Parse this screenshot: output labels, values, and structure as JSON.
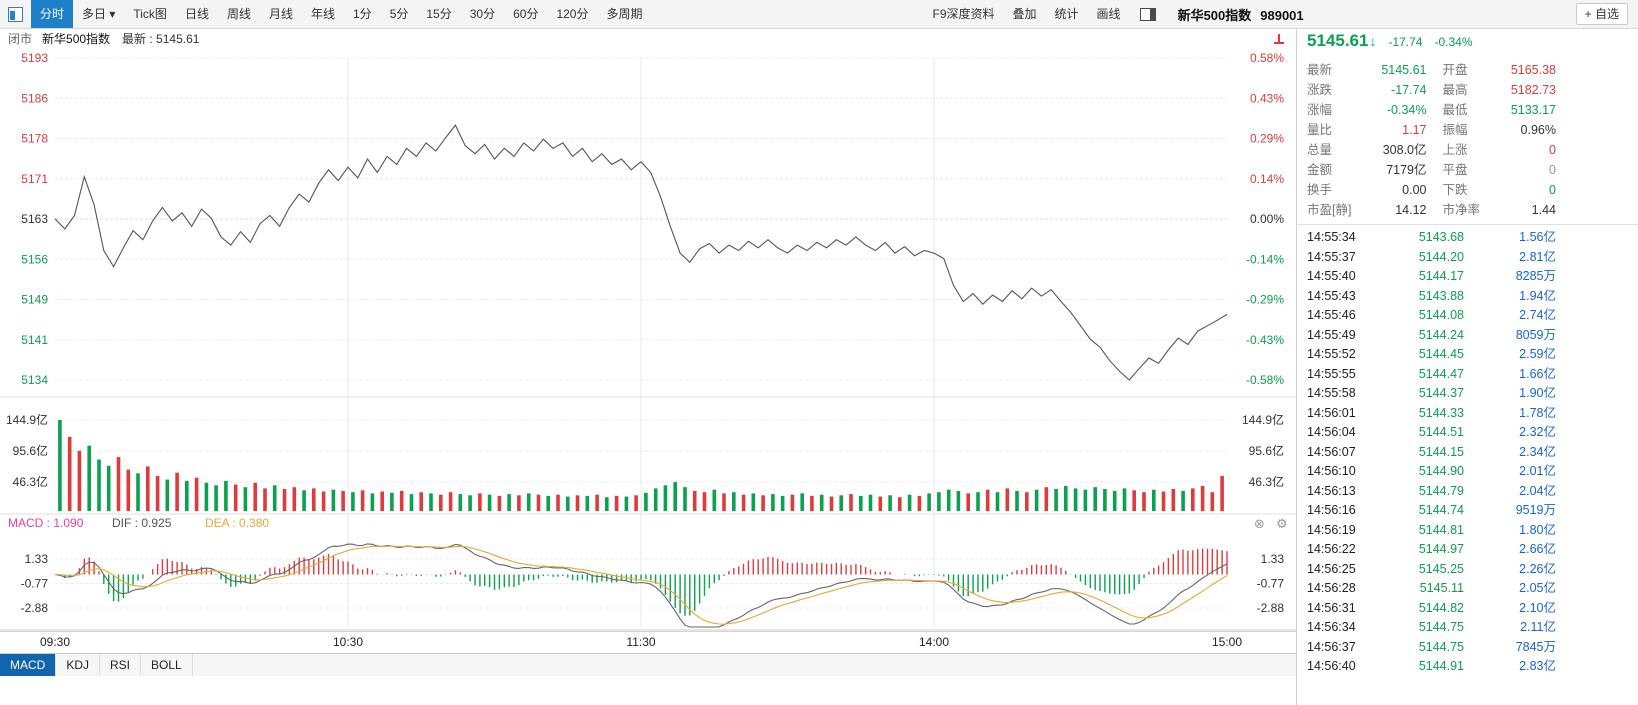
{
  "toolbar": {
    "tabs": [
      {
        "label": "分时",
        "active": true
      },
      {
        "label": "多日",
        "dropdown": true
      },
      {
        "label": "Tick图"
      },
      {
        "label": "日线"
      },
      {
        "label": "周线"
      },
      {
        "label": "月线"
      },
      {
        "label": "年线"
      },
      {
        "label": "1分"
      },
      {
        "label": "5分"
      },
      {
        "label": "15分"
      },
      {
        "label": "30分"
      },
      {
        "label": "60分"
      },
      {
        "label": "120分"
      },
      {
        "label": "多周期"
      }
    ],
    "right_items": [
      "F9深度资料",
      "叠加",
      "统计",
      "画线"
    ]
  },
  "subheader": {
    "market_status": "闭市",
    "name": "新华500指数",
    "latest": "最新 : 5145.61"
  },
  "panel": {
    "title": "新华500指数",
    "code": "989001",
    "add_watch": "+ 自选",
    "last": "5145.61",
    "arrow": "↓",
    "change": "-17.74",
    "change_pct": "-0.34%"
  },
  "stats": [
    [
      [
        "最新",
        "5145.61",
        "down"
      ],
      [
        "开盘",
        "5165.38",
        "up"
      ]
    ],
    [
      [
        "涨跌",
        "-17.74",
        "down"
      ],
      [
        "最高",
        "5182.73",
        "up"
      ]
    ],
    [
      [
        "涨幅",
        "-0.34%",
        "down"
      ],
      [
        "最低",
        "5133.17",
        "down"
      ]
    ],
    [
      [
        "量比",
        "1.17",
        "up"
      ],
      [
        "振幅",
        "0.96%",
        "flat"
      ]
    ],
    [
      [
        "总量",
        "308.0亿",
        "flat"
      ],
      [
        "上涨",
        "0",
        "up"
      ]
    ],
    [
      [
        "金额",
        "7179亿",
        "flat"
      ],
      [
        "平盘",
        "0",
        "gray"
      ]
    ],
    [
      [
        "换手",
        "0.00",
        "flat"
      ],
      [
        "下跌",
        "0",
        "down"
      ]
    ],
    [
      [
        "市盈[静]",
        "14.12",
        "flat"
      ],
      [
        "市净率",
        "1.44",
        "flat"
      ]
    ]
  ],
  "ticks": [
    [
      "14:55:34",
      "5143.68",
      "1.56亿"
    ],
    [
      "14:55:37",
      "5144.20",
      "2.81亿"
    ],
    [
      "14:55:40",
      "5144.17",
      "8285万"
    ],
    [
      "14:55:43",
      "5143.88",
      "1.94亿"
    ],
    [
      "14:55:46",
      "5144.08",
      "2.74亿"
    ],
    [
      "14:55:49",
      "5144.24",
      "8059万"
    ],
    [
      "14:55:52",
      "5144.45",
      "2.59亿"
    ],
    [
      "14:55:55",
      "5144.47",
      "1.66亿"
    ],
    [
      "14:55:58",
      "5144.37",
      "1.90亿"
    ],
    [
      "14:56:01",
      "5144.33",
      "1.78亿"
    ],
    [
      "14:56:04",
      "5144.51",
      "2.32亿"
    ],
    [
      "14:56:07",
      "5144.15",
      "2.34亿"
    ],
    [
      "14:56:10",
      "5144.90",
      "2.01亿"
    ],
    [
      "14:56:13",
      "5144.79",
      "2.04亿"
    ],
    [
      "14:56:16",
      "5144.74",
      "9519万"
    ],
    [
      "14:56:19",
      "5144.81",
      "1.80亿"
    ],
    [
      "14:56:22",
      "5144.97",
      "2.66亿"
    ],
    [
      "14:56:25",
      "5145.25",
      "2.26亿"
    ],
    [
      "14:56:28",
      "5145.11",
      "2.05亿"
    ],
    [
      "14:56:31",
      "5144.82",
      "2.10亿"
    ],
    [
      "14:56:34",
      "5144.75",
      "2.11亿"
    ],
    [
      "14:56:37",
      "5144.75",
      "7845万"
    ],
    [
      "14:56:40",
      "5144.91",
      "2.83亿"
    ]
  ],
  "bottom_tabs": [
    {
      "label": "MACD",
      "active": true
    },
    {
      "label": "KDJ"
    },
    {
      "label": "RSI"
    },
    {
      "label": "BOLL"
    }
  ],
  "macd_header": {
    "macd": "MACD : 1.090",
    "dif": "DIF : 0.925",
    "dea": "DEA : 0.380"
  },
  "colors": {
    "up": "#e03b3b",
    "down": "#0aa150",
    "flat": "#333333",
    "gray": "#999999",
    "blue": "#1565d8",
    "accent": "#1e80c8",
    "line": "#555555",
    "dea": "#e8a838",
    "magenta": "#e040b0"
  },
  "chart_data": {
    "type": "line",
    "title": "新华500指数 分时走势",
    "prev_close": 5163.35,
    "x_tick_labels": [
      "09:30",
      "10:30",
      "11:30",
      "14:00",
      "15:00"
    ],
    "price_axis": [
      "5193",
      "5186",
      "5178",
      "5171",
      "5163",
      "5156",
      "5149",
      "5141",
      "5134"
    ],
    "pct_axis": [
      "0.58%",
      "0.43%",
      "0.29%",
      "0.14%",
      "0.00%",
      "-0.14%",
      "-0.29%",
      "-0.43%",
      "-0.58%"
    ],
    "volume_axis": [
      "144.9亿",
      "95.6亿",
      "46.3亿"
    ],
    "volume_axis_values": [
      144.9,
      95.6,
      46.3
    ],
    "macd_axis": [
      "1.33",
      "-0.77",
      "-2.88"
    ],
    "indicator": {
      "name": "MACD",
      "macd": 1.09,
      "dif": 0.925,
      "dea": 0.38
    },
    "prices": [
      5163.4,
      5161.5,
      5164.0,
      5171.2,
      5166.0,
      5157.5,
      5154.5,
      5158.0,
      5161.2,
      5159.5,
      5163.0,
      5165.5,
      5163.0,
      5164.5,
      5162.0,
      5165.2,
      5163.5,
      5160.0,
      5158.5,
      5161.0,
      5159.0,
      5162.5,
      5164.0,
      5162.0,
      5165.5,
      5168.0,
      5166.5,
      5170.0,
      5172.5,
      5170.5,
      5173.0,
      5171.0,
      5174.5,
      5172.0,
      5175.0,
      5173.5,
      5176.5,
      5175.0,
      5177.5,
      5176.0,
      5178.5,
      5180.8,
      5177.0,
      5175.5,
      5177.2,
      5174.5,
      5176.5,
      5175.0,
      5177.5,
      5176.0,
      5178.2,
      5176.5,
      5177.5,
      5175.0,
      5176.5,
      5174.0,
      5175.5,
      5173.5,
      5174.5,
      5172.5,
      5174.0,
      5172.0,
      5167.5,
      5162.0,
      5157.0,
      5155.3,
      5157.8,
      5158.8,
      5157.0,
      5158.5,
      5157.5,
      5159.2,
      5158.0,
      5159.5,
      5158.0,
      5157.0,
      5158.5,
      5157.5,
      5159.0,
      5158.0,
      5159.5,
      5158.5,
      5160.0,
      5158.5,
      5157.5,
      5159.0,
      5157.0,
      5158.2,
      5156.5,
      5157.5,
      5157.0,
      5156.0,
      5151.0,
      5148.0,
      5149.5,
      5147.5,
      5149.2,
      5148.0,
      5150.0,
      5148.5,
      5150.5,
      5149.0,
      5150.2,
      5148.0,
      5146.0,
      5143.5,
      5141.0,
      5139.5,
      5137.0,
      5135.0,
      5133.4,
      5135.5,
      5137.5,
      5136.5,
      5139.0,
      5141.2,
      5140.0,
      5142.5,
      5143.5,
      5144.5,
      5145.6
    ],
    "volumes": [
      145,
      118,
      96,
      104,
      82,
      72,
      86,
      66,
      60,
      71,
      56,
      50,
      61,
      48,
      53,
      45,
      41,
      48,
      42,
      38,
      45,
      36,
      41,
      35,
      38,
      33,
      36,
      31,
      34,
      32,
      30,
      33,
      28,
      31,
      29,
      32,
      27,
      30,
      28,
      26,
      30,
      27,
      25,
      28,
      26,
      24,
      27,
      25,
      28,
      26,
      24,
      26,
      23,
      25,
      24,
      26,
      22,
      24,
      23,
      25,
      29,
      36,
      41,
      46,
      38,
      32,
      30,
      34,
      28,
      30,
      26,
      28,
      25,
      27,
      24,
      26,
      28,
      24,
      26,
      23,
      25,
      27,
      24,
      26,
      23,
      25,
      22,
      26,
      24,
      28,
      30,
      34,
      32,
      28,
      30,
      34,
      30,
      36,
      32,
      30,
      34,
      38,
      35,
      40,
      36,
      34,
      38,
      35,
      32,
      36,
      33,
      30,
      34,
      31,
      35,
      32,
      36,
      40,
      30,
      56
    ]
  }
}
